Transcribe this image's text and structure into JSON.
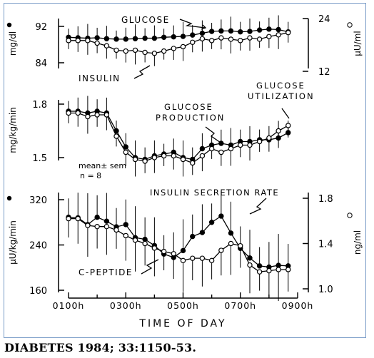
{
  "citation": "DIABETES 1984; 33:1150-53.",
  "chart_data": [
    {
      "type": "line",
      "panel": "top",
      "x_hours": [
        1.0,
        1.33,
        1.67,
        2.0,
        2.33,
        2.67,
        3.0,
        3.33,
        3.67,
        4.0,
        4.33,
        4.67,
        5.0,
        5.33,
        5.67,
        6.0,
        6.33,
        6.67,
        7.0,
        7.33,
        7.67,
        8.0,
        8.33,
        8.67
      ],
      "left_axis": {
        "label": "mg/dl",
        "ticks": [
          "92",
          "84"
        ],
        "ylim": [
          84,
          92
        ]
      },
      "right_axis": {
        "label": "μU/ml",
        "ticks": [
          "24",
          "12"
        ],
        "ylim": [
          12,
          24
        ]
      },
      "series": [
        {
          "name": "GLUCOSE",
          "marker": "filled",
          "axis": "left",
          "values": [
            89.6,
            89.5,
            89.4,
            89.5,
            89.3,
            89.2,
            89.2,
            89.3,
            89.4,
            89.4,
            89.6,
            89.7,
            89.8,
            90.1,
            90.5,
            90.9,
            91.0,
            91.0,
            90.8,
            90.9,
            91.2,
            91.4,
            91.3,
            90.8
          ]
        },
        {
          "name": "INSULIN",
          "marker": "open",
          "axis": "right",
          "values": [
            19.0,
            19.0,
            19.0,
            18.4,
            17.8,
            16.8,
            16.6,
            16.8,
            16.3,
            16.1,
            16.6,
            17.2,
            17.6,
            18.6,
            19.4,
            19.0,
            19.6,
            19.3,
            19.0,
            19.6,
            19.3,
            19.9,
            20.3,
            20.8
          ]
        }
      ]
    },
    {
      "type": "line",
      "panel": "middle",
      "x_hours": [
        1.0,
        1.33,
        1.67,
        2.0,
        2.33,
        2.67,
        3.0,
        3.33,
        3.67,
        4.0,
        4.33,
        4.67,
        5.0,
        5.33,
        5.67,
        6.0,
        6.33,
        6.67,
        7.0,
        7.33,
        7.67,
        8.0,
        8.33,
        8.67
      ],
      "left_axis": {
        "label": "mg/kg/min",
        "ticks": [
          "1.8",
          "1.5"
        ],
        "ylim": [
          1.5,
          1.8
        ]
      },
      "annotations": [
        "mean± sem",
        "n = 8"
      ],
      "series": [
        {
          "name": "GLUCOSE PRODUCTION",
          "marker": "filled",
          "values": [
            1.76,
            1.76,
            1.75,
            1.76,
            1.75,
            1.65,
            1.56,
            1.5,
            1.49,
            1.51,
            1.52,
            1.53,
            1.5,
            1.49,
            1.55,
            1.57,
            1.58,
            1.57,
            1.59,
            1.59,
            1.6,
            1.6,
            1.61,
            1.64
          ]
        },
        {
          "name": "GLUCOSE UTILIZATION",
          "marker": "open",
          "values": [
            1.75,
            1.75,
            1.73,
            1.74,
            1.74,
            1.62,
            1.53,
            1.49,
            1.48,
            1.5,
            1.51,
            1.51,
            1.49,
            1.47,
            1.51,
            1.55,
            1.53,
            1.55,
            1.57,
            1.57,
            1.59,
            1.61,
            1.65,
            1.68
          ]
        }
      ]
    },
    {
      "type": "line",
      "panel": "bottom",
      "x_hours": [
        1.0,
        1.33,
        1.67,
        2.0,
        2.33,
        2.67,
        3.0,
        3.33,
        3.67,
        4.0,
        4.33,
        4.67,
        5.0,
        5.33,
        5.67,
        6.0,
        6.33,
        6.67,
        7.0,
        7.33,
        7.67,
        8.0,
        8.33,
        8.67
      ],
      "left_axis": {
        "label": "μU/kg/min",
        "ticks": [
          "320",
          "240",
          "160"
        ],
        "ylim": [
          160,
          320
        ]
      },
      "right_axis": {
        "label": "ng/ml",
        "ticks": [
          "1.8",
          "1.4",
          "1.0"
        ],
        "ylim": [
          1.0,
          1.8
        ]
      },
      "series": [
        {
          "name": "INSULIN SECRETION RATE",
          "marker": "filled",
          "axis": "left",
          "values": [
            289,
            288,
            276,
            289,
            282,
            272,
            276,
            253,
            250,
            239,
            224,
            218,
            230,
            255,
            262,
            280,
            291,
            261,
            234,
            217,
            203,
            201,
            204,
            203
          ]
        },
        {
          "name": "C-PEPTIDE",
          "marker": "open",
          "axis": "right",
          "values": [
            1.62,
            1.62,
            1.56,
            1.55,
            1.55,
            1.52,
            1.47,
            1.43,
            1.4,
            1.36,
            1.33,
            1.31,
            1.25,
            1.27,
            1.27,
            1.25,
            1.34,
            1.4,
            1.38,
            1.21,
            1.15,
            1.16,
            1.17,
            1.17
          ]
        }
      ],
      "x_axis": {
        "label": "TIME OF DAY",
        "ticks": [
          "0100h",
          "0300h",
          "0500h",
          "0700h",
          "0900h"
        ],
        "xlim_hours": [
          1,
          9
        ]
      }
    }
  ]
}
